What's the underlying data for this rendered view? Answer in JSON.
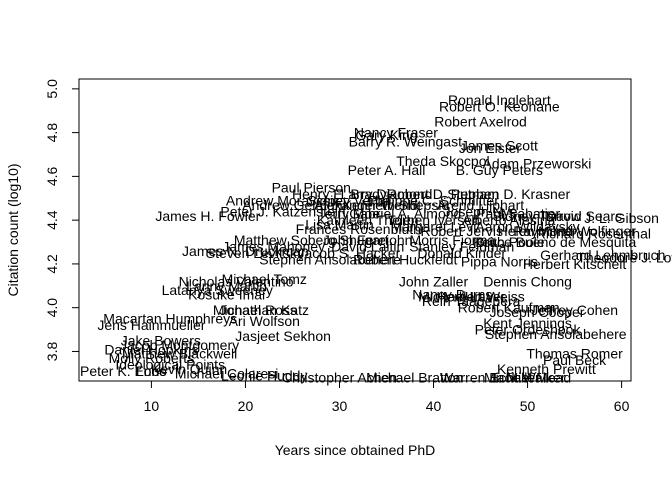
{
  "chart_data": {
    "type": "scatter",
    "xlabel": "Years since obtained PhD",
    "ylabel": "Citation count (log10)",
    "xlim": [
      2.3,
      61
    ],
    "ylim": [
      3.665,
      5.045
    ],
    "xticks": [
      10,
      20,
      30,
      40,
      50,
      60
    ],
    "yticks": [
      3.8,
      4.0,
      4.2,
      4.4,
      4.6,
      4.8,
      5.0
    ],
    "grid": false,
    "marker": "text-label",
    "labeled_points": [
      {
        "x": 47,
        "y": 4.95,
        "label": "Ronald Inglehart"
      },
      {
        "x": 47,
        "y": 4.92,
        "label": "Robert O. Keohane"
      },
      {
        "x": 45,
        "y": 4.85,
        "label": "Robert Axelrod"
      },
      {
        "x": 36,
        "y": 4.8,
        "label": "Nancy Fraser"
      },
      {
        "x": 35,
        "y": 4.79,
        "label": "Gary King"
      },
      {
        "x": 37,
        "y": 4.76,
        "label": "Barry R. Weingast"
      },
      {
        "x": 47,
        "y": 4.74,
        "label": "James Scott"
      },
      {
        "x": 46,
        "y": 4.73,
        "label": "Jon Elster"
      },
      {
        "x": 41,
        "y": 4.67,
        "label": "Theda Skocpol"
      },
      {
        "x": 51,
        "y": 4.66,
        "label": "Adam Przeworski"
      },
      {
        "x": 35,
        "y": 4.63,
        "label": "Peter A. Hall"
      },
      {
        "x": 47,
        "y": 4.63,
        "label": "B. Guy Peters"
      },
      {
        "x": 27,
        "y": 4.55,
        "label": "Paul Pierson"
      },
      {
        "x": 30,
        "y": 4.52,
        "label": "Henry E. Brady"
      },
      {
        "x": 35,
        "y": 4.52,
        "label": "Larry Diamond"
      },
      {
        "x": 41,
        "y": 4.52,
        "label": "Robert D. Putnam"
      },
      {
        "x": 48,
        "y": 4.52,
        "label": "Stephen D. Krasner"
      },
      {
        "x": 24,
        "y": 4.49,
        "label": "Andrew Moravcsik"
      },
      {
        "x": 31,
        "y": 4.49,
        "label": "Sidney Verba"
      },
      {
        "x": 40,
        "y": 4.49,
        "label": "Philippe C. Schmitter"
      },
      {
        "x": 25,
        "y": 4.47,
        "label": "Andrew Gelman"
      },
      {
        "x": 33,
        "y": 4.47,
        "label": "Alexander Wendt"
      },
      {
        "x": 36,
        "y": 4.47,
        "label": "Kenneth Shepsle"
      },
      {
        "x": 45,
        "y": 4.47,
        "label": "Arend Lijphart"
      },
      {
        "x": 16,
        "y": 4.42,
        "label": "James H. Fowler"
      },
      {
        "x": 24,
        "y": 4.44,
        "label": "Peter J. Katzenstein"
      },
      {
        "x": 31,
        "y": 4.43,
        "label": "Terry Moe"
      },
      {
        "x": 37,
        "y": 4.43,
        "label": "Gabriel A. Almond"
      },
      {
        "x": 45,
        "y": 4.44,
        "label": "Joseph Nye"
      },
      {
        "x": 49,
        "y": 4.43,
        "label": "Paul Sabatier"
      },
      {
        "x": 51,
        "y": 4.42,
        "label": "Sidney Tarrow"
      },
      {
        "x": 56,
        "y": 4.42,
        "label": "David Sears"
      },
      {
        "x": 60,
        "y": 4.41,
        "label": "J. L. Gibson"
      },
      {
        "x": 33,
        "y": 4.4,
        "label": "Kathleen Thelen"
      },
      {
        "x": 40,
        "y": 4.4,
        "label": "Torben Iversen"
      },
      {
        "x": 48,
        "y": 4.4,
        "label": "Alberto Alesina"
      },
      {
        "x": 30,
        "y": 4.38,
        "label": "Lisa Martin"
      },
      {
        "x": 40,
        "y": 4.37,
        "label": "Margaret Levi"
      },
      {
        "x": 50,
        "y": 4.37,
        "label": "Aaron Wildavsky"
      },
      {
        "x": 32,
        "y": 4.36,
        "label": "Frances Rosenbluth"
      },
      {
        "x": 43,
        "y": 4.35,
        "label": "Robert Jervis"
      },
      {
        "x": 51,
        "y": 4.35,
        "label": "Helen Milner"
      },
      {
        "x": 55,
        "y": 4.35,
        "label": "Raymond Wolfinger"
      },
      {
        "x": 57,
        "y": 4.34,
        "label": "Richard Rosenthal"
      },
      {
        "x": 27,
        "y": 4.31,
        "label": "Matthew Soberg Shugart"
      },
      {
        "x": 33,
        "y": 4.31,
        "label": "John Ferejohn"
      },
      {
        "x": 42,
        "y": 4.31,
        "label": "Morris Fiorina"
      },
      {
        "x": 48,
        "y": 4.3,
        "label": "Keith Poole"
      },
      {
        "x": 53,
        "y": 4.3,
        "label": "Bruce Bueno de Mesquita"
      },
      {
        "x": 23,
        "y": 4.28,
        "label": "James Mahoney"
      },
      {
        "x": 33,
        "y": 4.28,
        "label": "David Laitin"
      },
      {
        "x": 43,
        "y": 4.28,
        "label": "Stanley Feldman"
      },
      {
        "x": 20,
        "y": 4.26,
        "label": "James N. Druckman"
      },
      {
        "x": 21,
        "y": 4.25,
        "label": "Steven Levitsky"
      },
      {
        "x": 31,
        "y": 4.25,
        "label": "Jacob S. Hacker"
      },
      {
        "x": 43,
        "y": 4.25,
        "label": "Donald Kinder"
      },
      {
        "x": 58,
        "y": 4.24,
        "label": "Gerhard Lehmbruch"
      },
      {
        "x": 61,
        "y": 4.23,
        "label": "Theodore J. Lowi"
      },
      {
        "x": 29,
        "y": 4.22,
        "label": "Stephen Ansolabehere"
      },
      {
        "x": 37,
        "y": 4.22,
        "label": "Robert Huckfeldt"
      },
      {
        "x": 47,
        "y": 4.21,
        "label": "Pippa Norris"
      },
      {
        "x": 55,
        "y": 4.2,
        "label": "Herbert Kitschelt"
      },
      {
        "x": 19,
        "y": 4.12,
        "label": "Nicholas Valentino"
      },
      {
        "x": 22,
        "y": 4.13,
        "label": "Michael Tomz"
      },
      {
        "x": 40,
        "y": 4.12,
        "label": "John Zaller"
      },
      {
        "x": 50,
        "y": 4.12,
        "label": "Dennis Chong"
      },
      {
        "x": 18,
        "y": 4.1,
        "label": "Lanny Martin"
      },
      {
        "x": 17,
        "y": 4.08,
        "label": "Latanya Sweeney"
      },
      {
        "x": 18,
        "y": 4.06,
        "label": "Kosuke Imai"
      },
      {
        "x": 42,
        "y": 4.06,
        "label": "Nancy Burns"
      },
      {
        "x": 43,
        "y": 4.05,
        "label": "Michael Laver"
      },
      {
        "x": 44,
        "y": 4.03,
        "label": "Rein Taagepera"
      },
      {
        "x": 45,
        "y": 4.05,
        "label": "Herbert Weiss"
      },
      {
        "x": 48,
        "y": 4.0,
        "label": "Robert Kaufman"
      },
      {
        "x": 55,
        "y": 3.99,
        "label": "Jeffrey Cohen"
      },
      {
        "x": 22,
        "y": 3.99,
        "label": "Jonathan Katz"
      },
      {
        "x": 21,
        "y": 3.99,
        "label": "Michael Ross"
      },
      {
        "x": 51,
        "y": 3.98,
        "label": "Joseph Cooper"
      },
      {
        "x": 22,
        "y": 3.94,
        "label": "Ari Wolfson"
      },
      {
        "x": 50,
        "y": 3.93,
        "label": "Kent Jennings"
      },
      {
        "x": 50,
        "y": 3.9,
        "label": "Peter Ordeshook"
      },
      {
        "x": 10,
        "y": 3.92,
        "label": "Jens Hainmueller"
      },
      {
        "x": 12,
        "y": 3.95,
        "label": "Macartan Humphreys"
      },
      {
        "x": 53,
        "y": 3.88,
        "label": "Stephen Ansolabehere"
      },
      {
        "x": 24,
        "y": 3.87,
        "label": "Jasjeet Sekhon"
      },
      {
        "x": 11,
        "y": 3.85,
        "label": "Jake Bowers"
      },
      {
        "x": 13,
        "y": 3.83,
        "label": "Jacob Montgomery"
      },
      {
        "x": 55,
        "y": 3.79,
        "label": "Thomas Romer"
      },
      {
        "x": 55,
        "y": 3.76,
        "label": "Paul Beck"
      },
      {
        "x": 10,
        "y": 3.81,
        "label": "Daniel Hopkins"
      },
      {
        "x": 13,
        "y": 3.79,
        "label": "Matthew Blackwell"
      },
      {
        "x": 10,
        "y": 3.77,
        "label": "Molly Roberts"
      },
      {
        "x": 52,
        "y": 3.72,
        "label": "Kenneth Prewitt"
      },
      {
        "x": 12,
        "y": 3.74,
        "label": "Ideological Points"
      },
      {
        "x": 14,
        "y": 3.72,
        "label": "Kevin Quinn"
      },
      {
        "x": 7,
        "y": 3.71,
        "label": "Peter K. Enns"
      },
      {
        "x": 10,
        "y": 3.71,
        "label": "Lobo"
      },
      {
        "x": 18,
        "y": 3.7,
        "label": "Michael Colaresi"
      },
      {
        "x": 22,
        "y": 3.69,
        "label": "Leonie Huddy"
      },
      {
        "x": 30,
        "y": 3.68,
        "label": "Christopher Achen"
      },
      {
        "x": 38,
        "y": 3.68,
        "label": "Michael Bratton"
      },
      {
        "x": 46,
        "y": 3.68,
        "label": "Warren E. Miller"
      },
      {
        "x": 50,
        "y": 3.68,
        "label": "Jack Walker"
      },
      {
        "x": 50,
        "y": 3.68,
        "label": "Michael Mead"
      }
    ]
  }
}
